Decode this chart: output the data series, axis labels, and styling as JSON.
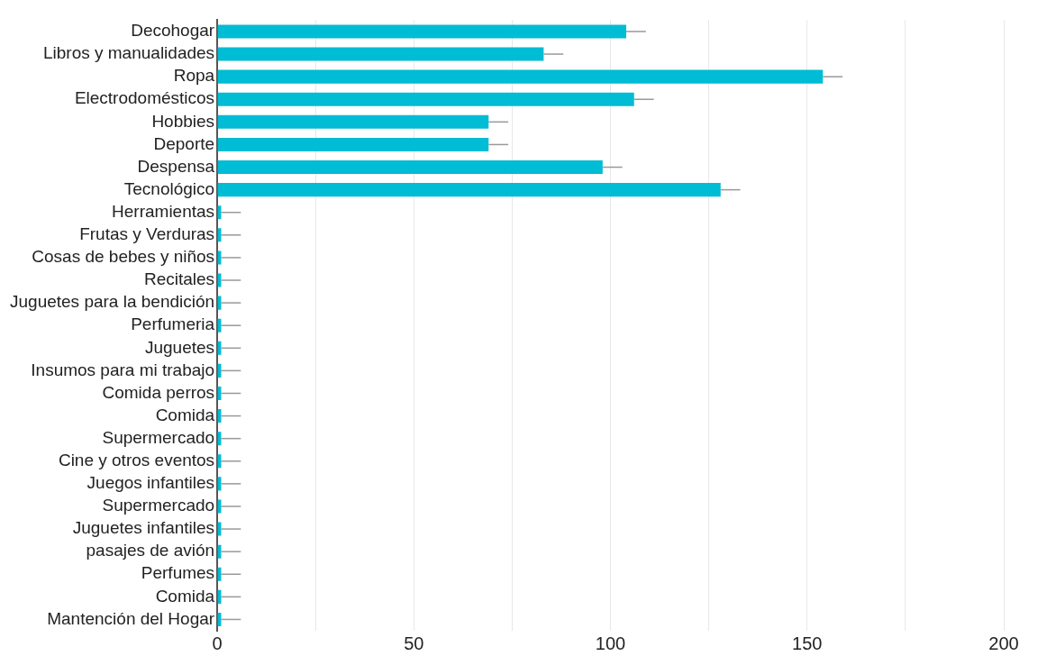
{
  "chart_data": {
    "type": "bar",
    "orientation": "horizontal",
    "color": "#00bcd4",
    "categories": [
      "Decohogar",
      "Libros y manualidades",
      "Ropa",
      "Electrodomésticos",
      "Hobbies",
      "Deporte",
      "Despensa",
      "Tecnológico",
      "Herramientas",
      "Frutas y Verduras",
      "Cosas de bebes y niños",
      "Recitales",
      "Juguetes para la bendición",
      "Perfumeria",
      "Juguetes",
      "Insumos para mi trabajo",
      "Comida perros",
      "Comida",
      "Supermercado",
      "Cine y otros eventos",
      "Juegos infantiles",
      "Supermercado",
      "Juguetes infantiles",
      "pasajes de avión",
      "Perfumes",
      "Comida",
      "Mantención del Hogar"
    ],
    "values": [
      104,
      83,
      154,
      106,
      69,
      69,
      98,
      128,
      1,
      1,
      1,
      1,
      1,
      1,
      1,
      1,
      1,
      1,
      1,
      1,
      1,
      1,
      1,
      1,
      1,
      1,
      1
    ],
    "errors": [
      [
        104,
        109
      ],
      [
        83,
        88
      ],
      [
        154,
        159
      ],
      [
        106,
        111
      ],
      [
        69,
        74
      ],
      [
        69,
        74
      ],
      [
        98,
        103
      ],
      [
        128,
        133
      ],
      [
        1,
        6
      ],
      [
        1,
        6
      ],
      [
        1,
        6
      ],
      [
        1,
        6
      ],
      [
        1,
        6
      ],
      [
        1,
        6
      ],
      [
        1,
        6
      ],
      [
        1,
        6
      ],
      [
        1,
        6
      ],
      [
        1,
        6
      ],
      [
        1,
        6
      ],
      [
        1,
        6
      ],
      [
        1,
        6
      ],
      [
        1,
        6
      ],
      [
        1,
        6
      ],
      [
        1,
        6
      ],
      [
        1,
        6
      ],
      [
        1,
        6
      ],
      [
        1,
        6
      ]
    ],
    "xlim": [
      0,
      200
    ],
    "xticks": [
      0,
      {
        "value": 25,
        "label": null
      },
      50,
      {
        "value": 75,
        "label": null
      },
      100,
      {
        "value": 125,
        "label": null
      },
      150,
      {
        "value": 175,
        "label": null
      },
      200
    ],
    "grid": "x",
    "legend": false
  }
}
